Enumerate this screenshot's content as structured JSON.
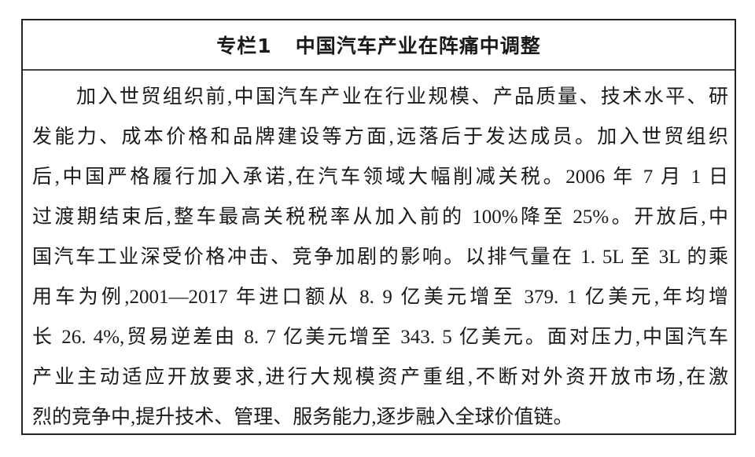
{
  "title": {
    "label": "专栏1",
    "text": "中国汽车产业在阵痛中调整"
  },
  "lines": [
    "加入世贸组织前,中国汽车产业在行业规模、产品质量、技术水平、研",
    "发能力、成本价格和品牌建设等方面,远落后于发达成员。加入世贸组织",
    "后,中国严格履行加入承诺,在汽车领域大幅削减关税。2006 年 7 月 1 日",
    "过渡期结束后,整车最高关税税率从加入前的 100%降至 25%。开放后,中",
    "国汽车工业深受价格冲击、竞争加剧的影响。以排气量在 1. 5L 至 3L 的乘",
    "用车为例,2001—2017 年进口额从 8. 9 亿美元增至 379. 1 亿美元,年均增",
    "长 26. 4%,贸易逆差由 8. 7 亿美元增至 343. 5 亿美元。面对压力,中国汽车",
    "产业主动适应开放要求,进行大规模资产重组,不断对外资开放市场,在激",
    "烈的竞争中,提升技术、管理、服务能力,逐步融入全球价值链。"
  ]
}
